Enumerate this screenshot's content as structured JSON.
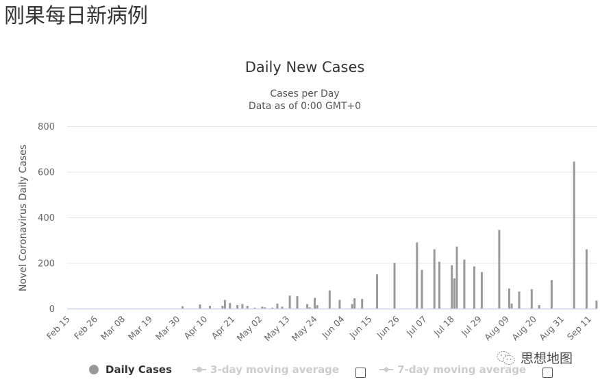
{
  "page": {
    "heading": "刚果每日新病例"
  },
  "chart": {
    "title": "Daily New Cases",
    "subtitle_line1": "Cases per Day",
    "subtitle_line2": "Data as of 0:00 GMT+0",
    "y_axis_label": "Novel Coronavirus Daily Cases",
    "y_ticks": [
      "0",
      "200",
      "400",
      "600",
      "800"
    ],
    "x_ticks": [
      "Feb 15",
      "Feb 26",
      "Mar 08",
      "Mar 19",
      "Mar 30",
      "Apr 10",
      "Apr 21",
      "May 02",
      "May 13",
      "May 24",
      "Jun 04",
      "Jun 15",
      "Jun 26",
      "Jul 07",
      "Jul 18",
      "Jul 29",
      "Aug 09",
      "Aug 20",
      "Aug 31",
      "Sep 11"
    ],
    "bar_color": "#999999",
    "grid_color": "#e6e6e6",
    "axis_color": "#ccd6eb"
  },
  "legend": {
    "items": [
      {
        "label": "Daily Cases",
        "active": true,
        "icon": "circle-marker"
      },
      {
        "label": "3-day moving average",
        "active": false,
        "icon": "line-circle-marker"
      },
      {
        "label": "7-day moving average",
        "active": false,
        "icon": "line-diamond-marker"
      }
    ]
  },
  "watermark": {
    "text": "思想地图",
    "icon": "wechat-icon"
  },
  "chart_data": {
    "type": "bar",
    "title": "Daily New Cases",
    "subtitle": "Cases per Day / Data as of 0:00 GMT+0",
    "xlabel": "",
    "ylabel": "Novel Coronavirus Daily Cases",
    "ylim": [
      0,
      800
    ],
    "y_ticks": [
      0,
      200,
      400,
      600,
      800
    ],
    "x_tick_labels": [
      "Feb 15",
      "Feb 26",
      "Mar 08",
      "Mar 19",
      "Mar 30",
      "Apr 10",
      "Apr 21",
      "May 02",
      "May 13",
      "May 24",
      "Jun 04",
      "Jun 15",
      "Jun 26",
      "Jul 07",
      "Jul 18",
      "Jul 29",
      "Aug 09",
      "Aug 20",
      "Aug 31",
      "Sep 11"
    ],
    "grid": true,
    "legend_position": "bottom",
    "series": [
      {
        "name": "Daily Cases",
        "points": [
          {
            "date": "Apr 01",
            "value": 10
          },
          {
            "date": "Apr 08",
            "value": 18
          },
          {
            "date": "Apr 12",
            "value": 12
          },
          {
            "date": "Apr 17",
            "value": 12
          },
          {
            "date": "Apr 18",
            "value": 38
          },
          {
            "date": "Apr 20",
            "value": 24
          },
          {
            "date": "Apr 23",
            "value": 15
          },
          {
            "date": "Apr 25",
            "value": 20
          },
          {
            "date": "Apr 27",
            "value": 12
          },
          {
            "date": "Apr 30",
            "value": 4
          },
          {
            "date": "May 03",
            "value": 8
          },
          {
            "date": "May 04",
            "value": 5
          },
          {
            "date": "May 07",
            "value": 4
          },
          {
            "date": "May 09",
            "value": 22
          },
          {
            "date": "May 11",
            "value": 8
          },
          {
            "date": "May 14",
            "value": 57
          },
          {
            "date": "May 17",
            "value": 54
          },
          {
            "date": "May 21",
            "value": 20
          },
          {
            "date": "May 22",
            "value": 5
          },
          {
            "date": "May 24",
            "value": 47
          },
          {
            "date": "May 25",
            "value": 15
          },
          {
            "date": "May 30",
            "value": 80
          },
          {
            "date": "Jun 03",
            "value": 38
          },
          {
            "date": "Jun 08",
            "value": 20
          },
          {
            "date": "Jun 09",
            "value": 45
          },
          {
            "date": "Jun 12",
            "value": 42
          },
          {
            "date": "Jun 18",
            "value": 150
          },
          {
            "date": "Jun 25",
            "value": 200
          },
          {
            "date": "Jul 04",
            "value": 290
          },
          {
            "date": "Jul 06",
            "value": 170
          },
          {
            "date": "Jul 11",
            "value": 260
          },
          {
            "date": "Jul 13",
            "value": 205
          },
          {
            "date": "Jul 18",
            "value": 190
          },
          {
            "date": "Jul 19",
            "value": 132
          },
          {
            "date": "Jul 20",
            "value": 272
          },
          {
            "date": "Jul 23",
            "value": 215
          },
          {
            "date": "Jul 27",
            "value": 185
          },
          {
            "date": "Jul 30",
            "value": 160
          },
          {
            "date": "Aug 06",
            "value": 345
          },
          {
            "date": "Aug 10",
            "value": 88
          },
          {
            "date": "Aug 11",
            "value": 22
          },
          {
            "date": "Aug 14",
            "value": 75
          },
          {
            "date": "Aug 19",
            "value": 85
          },
          {
            "date": "Aug 22",
            "value": 15
          },
          {
            "date": "Aug 27",
            "value": 125
          },
          {
            "date": "Sep 05",
            "value": 645
          },
          {
            "date": "Sep 10",
            "value": 260
          },
          {
            "date": "Sep 14",
            "value": 35
          }
        ]
      },
      {
        "name": "3-day moving average",
        "visible": false,
        "points": []
      },
      {
        "name": "7-day moving average",
        "visible": false,
        "points": []
      }
    ]
  }
}
